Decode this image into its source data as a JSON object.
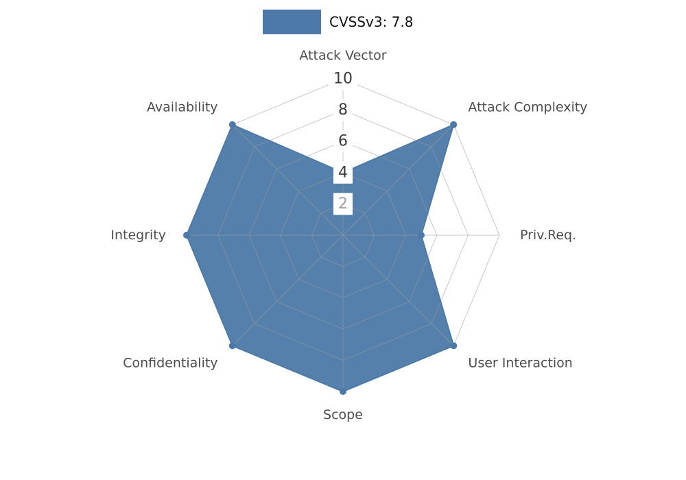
{
  "legend": {
    "label": "CVSSv3: 7.8"
  },
  "chart_data": {
    "type": "radar",
    "title": "CVSSv3: 7.8",
    "categories": [
      "Attack Vector",
      "Attack Complexity",
      "Priv.Req.",
      "User Interaction",
      "Scope",
      "Confidentiality",
      "Integrity",
      "Availability"
    ],
    "series": [
      {
        "name": "CVSSv3: 7.8",
        "values": [
          4,
          10,
          5,
          10,
          10,
          10,
          10,
          10
        ]
      }
    ],
    "radial_ticks": [
      2,
      4,
      6,
      8,
      10
    ],
    "rlim": [
      0,
      10
    ],
    "grid": true,
    "grid_shape": "polygon",
    "legend_position": "top-center",
    "start_axis": "top",
    "direction": "clockwise",
    "colors": {
      "fill": "#4c79a8",
      "stroke": "#4c79a8",
      "marker": "#4c79a8",
      "grid": "#9a9a9a",
      "tick_label": "#3b3b3b",
      "tick_label_min": "#9e9e9e",
      "tick_box": "#ffffff",
      "axis_label": "#4d4d4d",
      "legend_text": "#111111"
    }
  }
}
